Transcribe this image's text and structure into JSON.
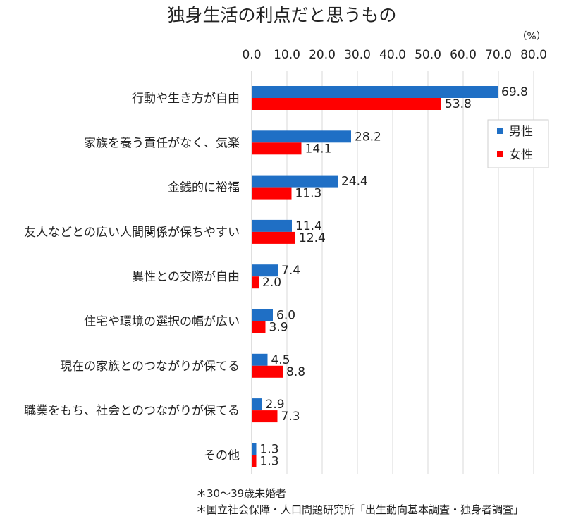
{
  "chart_data": {
    "type": "bar",
    "orientation": "horizontal",
    "title": "独身生活の利点だと思うもの",
    "unit_label": "（%）",
    "xlim": [
      0,
      80
    ],
    "ticks": [
      "0.0",
      "10.0",
      "20.0",
      "30.0",
      "40.0",
      "50.0",
      "60.0",
      "70.0",
      "80.0"
    ],
    "tick_position": "top",
    "grid": true,
    "legend_position": "right",
    "categories": [
      "行動や生き方が自由",
      "家族を養う責任がなく、気楽",
      "金銭的に裕福",
      "友人などとの広い人間関係が保ちやすい",
      "異性との交際が自由",
      "住宅や環境の選択の幅が広い",
      "現在の家族とのつながりが保てる",
      "職業をもち、社会とのつながりが保てる",
      "その他"
    ],
    "series": [
      {
        "name": "男性",
        "color": "#1f6fc5",
        "values": [
          69.8,
          28.2,
          24.4,
          11.4,
          7.4,
          6.0,
          4.5,
          2.9,
          1.3
        ],
        "labels": [
          "69.8",
          "28.2",
          "24.4",
          "11.4",
          "7.4",
          "6.0",
          "4.5",
          "2.9",
          "1.3"
        ]
      },
      {
        "name": "女性",
        "color": "#ff0000",
        "values": [
          53.8,
          14.1,
          11.3,
          12.4,
          2.0,
          3.9,
          8.8,
          7.3,
          1.3
        ],
        "labels": [
          "53.8",
          "14.1",
          "11.3",
          "12.4",
          "2.0",
          "3.9",
          "8.8",
          "7.3",
          "1.3"
        ]
      }
    ]
  },
  "notes": [
    "＊30〜39歳未婚者",
    "＊国立社会保障・人口問題研究所「出生動向基本調査・独身者調査」"
  ]
}
